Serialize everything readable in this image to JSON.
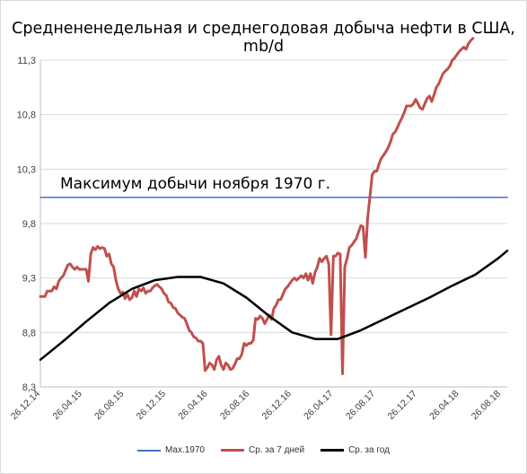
{
  "chart_data": {
    "type": "line",
    "title": "Среднененедельная и среднегодовая добыча нефти в США, mb/d",
    "ylim": [
      8.3,
      11.3
    ],
    "yticks": [
      "8,3",
      "8,8",
      "9,3",
      "9,8",
      "10,3",
      "10,8",
      "11,3"
    ],
    "ytick_values": [
      8.3,
      8.8,
      9.3,
      9.8,
      10.3,
      10.8,
      11.3
    ],
    "xticks": [
      "26.12.14",
      "26.04.15",
      "26.08.15",
      "26.12.15",
      "26.04.16",
      "26.08.16",
      "26.12.16",
      "26.04.17",
      "26.08.17",
      "26.12.17",
      "26.04.18",
      "26.08.18"
    ],
    "xlim": [
      0,
      204
    ],
    "annotation": "Максимум добычи ноября 1970 г.",
    "grid": true,
    "legend_position": "bottom",
    "series": [
      {
        "name": "Max.1970",
        "color": "#4472c4",
        "points": [
          [
            0,
            10.04
          ],
          [
            204,
            10.04
          ]
        ]
      },
      {
        "name": "Ср. за 7 дней",
        "color": "#c0504d",
        "points": [
          [
            0,
            9.13
          ],
          [
            2,
            9.13
          ],
          [
            3,
            9.18
          ],
          [
            5,
            9.18
          ],
          [
            6,
            9.22
          ],
          [
            7,
            9.2
          ],
          [
            8,
            9.27
          ],
          [
            9,
            9.3
          ],
          [
            10,
            9.32
          ],
          [
            11,
            9.37
          ],
          [
            12,
            9.42
          ],
          [
            13,
            9.43
          ],
          [
            14,
            9.4
          ],
          [
            15,
            9.38
          ],
          [
            16,
            9.4
          ],
          [
            17,
            9.38
          ],
          [
            18,
            9.38
          ],
          [
            19,
            9.38
          ],
          [
            20,
            9.38
          ],
          [
            21,
            9.27
          ],
          [
            22,
            9.52
          ],
          [
            23,
            9.58
          ],
          [
            24,
            9.56
          ],
          [
            25,
            9.59
          ],
          [
            26,
            9.57
          ],
          [
            27,
            9.58
          ],
          [
            28,
            9.57
          ],
          [
            29,
            9.5
          ],
          [
            30,
            9.52
          ],
          [
            31,
            9.43
          ],
          [
            32,
            9.4
          ],
          [
            33,
            9.28
          ],
          [
            34,
            9.2
          ],
          [
            35,
            9.16
          ],
          [
            36,
            9.17
          ],
          [
            37,
            9.11
          ],
          [
            38,
            9.15
          ],
          [
            39,
            9.1
          ],
          [
            40,
            9.12
          ],
          [
            41,
            9.18
          ],
          [
            42,
            9.13
          ],
          [
            43,
            9.2
          ],
          [
            44,
            9.18
          ],
          [
            45,
            9.21
          ],
          [
            46,
            9.16
          ],
          [
            47,
            9.18
          ],
          [
            48,
            9.18
          ],
          [
            49,
            9.21
          ],
          [
            50,
            9.23
          ],
          [
            51,
            9.24
          ],
          [
            52,
            9.22
          ],
          [
            53,
            9.2
          ],
          [
            54,
            9.16
          ],
          [
            55,
            9.14
          ],
          [
            56,
            9.08
          ],
          [
            57,
            9.07
          ],
          [
            58,
            9.03
          ],
          [
            59,
            9.02
          ],
          [
            60,
            8.98
          ],
          [
            61,
            8.96
          ],
          [
            62,
            8.94
          ],
          [
            63,
            8.93
          ],
          [
            64,
            8.88
          ],
          [
            65,
            8.82
          ],
          [
            66,
            8.8
          ],
          [
            67,
            8.76
          ],
          [
            68,
            8.75
          ],
          [
            69,
            8.72
          ],
          [
            70,
            8.72
          ],
          [
            71,
            8.7
          ],
          [
            72,
            8.45
          ],
          [
            73,
            8.48
          ],
          [
            74,
            8.52
          ],
          [
            75,
            8.5
          ],
          [
            76,
            8.46
          ],
          [
            77,
            8.55
          ],
          [
            78,
            8.58
          ],
          [
            79,
            8.5
          ],
          [
            80,
            8.46
          ],
          [
            81,
            8.52
          ],
          [
            82,
            8.5
          ],
          [
            83,
            8.46
          ],
          [
            84,
            8.47
          ],
          [
            85,
            8.51
          ],
          [
            86,
            8.56
          ],
          [
            87,
            8.56
          ],
          [
            88,
            8.6
          ],
          [
            89,
            8.7
          ],
          [
            90,
            8.68
          ],
          [
            91,
            8.7
          ],
          [
            92,
            8.7
          ],
          [
            93,
            8.73
          ],
          [
            94,
            8.93
          ],
          [
            95,
            8.92
          ],
          [
            96,
            8.95
          ],
          [
            97,
            8.93
          ],
          [
            98,
            8.88
          ],
          [
            99,
            8.92
          ],
          [
            100,
            8.96
          ],
          [
            101,
            8.92
          ],
          [
            102,
            9.02
          ],
          [
            103,
            9.05
          ],
          [
            104,
            9.1
          ],
          [
            105,
            9.1
          ],
          [
            106,
            9.15
          ],
          [
            107,
            9.2
          ],
          [
            108,
            9.22
          ],
          [
            109,
            9.25
          ],
          [
            110,
            9.28
          ],
          [
            111,
            9.3
          ],
          [
            112,
            9.28
          ],
          [
            113,
            9.3
          ],
          [
            114,
            9.32
          ],
          [
            115,
            9.3
          ],
          [
            116,
            9.34
          ],
          [
            117,
            9.28
          ],
          [
            118,
            9.34
          ],
          [
            119,
            9.25
          ],
          [
            120,
            9.35
          ],
          [
            121,
            9.4
          ],
          [
            122,
            9.48
          ],
          [
            123,
            9.45
          ],
          [
            124,
            9.48
          ],
          [
            125,
            9.5
          ],
          [
            126,
            9.43
          ],
          [
            127,
            8.78
          ],
          [
            128,
            9.5
          ],
          [
            129,
            9.5
          ],
          [
            130,
            9.53
          ],
          [
            131,
            9.52
          ],
          [
            132,
            8.42
          ],
          [
            133,
            9.4
          ],
          [
            134,
            9.48
          ],
          [
            135,
            9.58
          ],
          [
            136,
            9.6
          ],
          [
            137,
            9.63
          ],
          [
            138,
            9.66
          ],
          [
            139,
            9.72
          ],
          [
            140,
            9.78
          ],
          [
            141,
            9.77
          ],
          [
            142,
            9.49
          ],
          [
            143,
            9.85
          ],
          [
            144,
            10.05
          ],
          [
            145,
            10.25
          ],
          [
            146,
            10.28
          ],
          [
            147,
            10.28
          ],
          [
            148,
            10.35
          ],
          [
            149,
            10.4
          ],
          [
            150,
            10.43
          ],
          [
            151,
            10.46
          ],
          [
            152,
            10.5
          ],
          [
            153,
            10.55
          ],
          [
            154,
            10.62
          ],
          [
            155,
            10.64
          ],
          [
            156,
            10.68
          ],
          [
            157,
            10.73
          ],
          [
            158,
            10.77
          ],
          [
            159,
            10.82
          ],
          [
            160,
            10.88
          ],
          [
            161,
            10.88
          ],
          [
            162,
            10.88
          ],
          [
            163,
            10.9
          ],
          [
            164,
            10.94
          ],
          [
            165,
            10.9
          ],
          [
            166,
            10.86
          ],
          [
            167,
            10.85
          ],
          [
            168,
            10.9
          ],
          [
            169,
            10.95
          ],
          [
            170,
            10.97
          ],
          [
            171,
            10.92
          ],
          [
            172,
            10.98
          ],
          [
            173,
            11.05
          ],
          [
            174,
            11.08
          ],
          [
            175,
            11.13
          ],
          [
            176,
            11.18
          ],
          [
            177,
            11.2
          ],
          [
            178,
            11.22
          ],
          [
            179,
            11.25
          ],
          [
            180,
            11.3
          ],
          [
            181,
            11.32
          ],
          [
            182,
            11.35
          ],
          [
            183,
            11.38
          ],
          [
            184,
            11.4
          ],
          [
            185,
            11.42
          ],
          [
            186,
            11.4
          ],
          [
            187,
            11.45
          ],
          [
            188,
            11.48
          ],
          [
            189,
            11.5
          ]
        ]
      },
      {
        "name": "Ср. за год",
        "color": "#000000",
        "points": [
          [
            0,
            8.55
          ],
          [
            10,
            8.72
          ],
          [
            20,
            8.9
          ],
          [
            30,
            9.07
          ],
          [
            40,
            9.2
          ],
          [
            50,
            9.28
          ],
          [
            60,
            9.31
          ],
          [
            70,
            9.31
          ],
          [
            80,
            9.25
          ],
          [
            90,
            9.12
          ],
          [
            100,
            8.95
          ],
          [
            110,
            8.8
          ],
          [
            120,
            8.74
          ],
          [
            130,
            8.74
          ],
          [
            140,
            8.82
          ],
          [
            150,
            8.92
          ],
          [
            160,
            9.02
          ],
          [
            170,
            9.12
          ],
          [
            180,
            9.23
          ],
          [
            190,
            9.33
          ],
          [
            200,
            9.48
          ],
          [
            204,
            9.55
          ]
        ]
      }
    ]
  }
}
